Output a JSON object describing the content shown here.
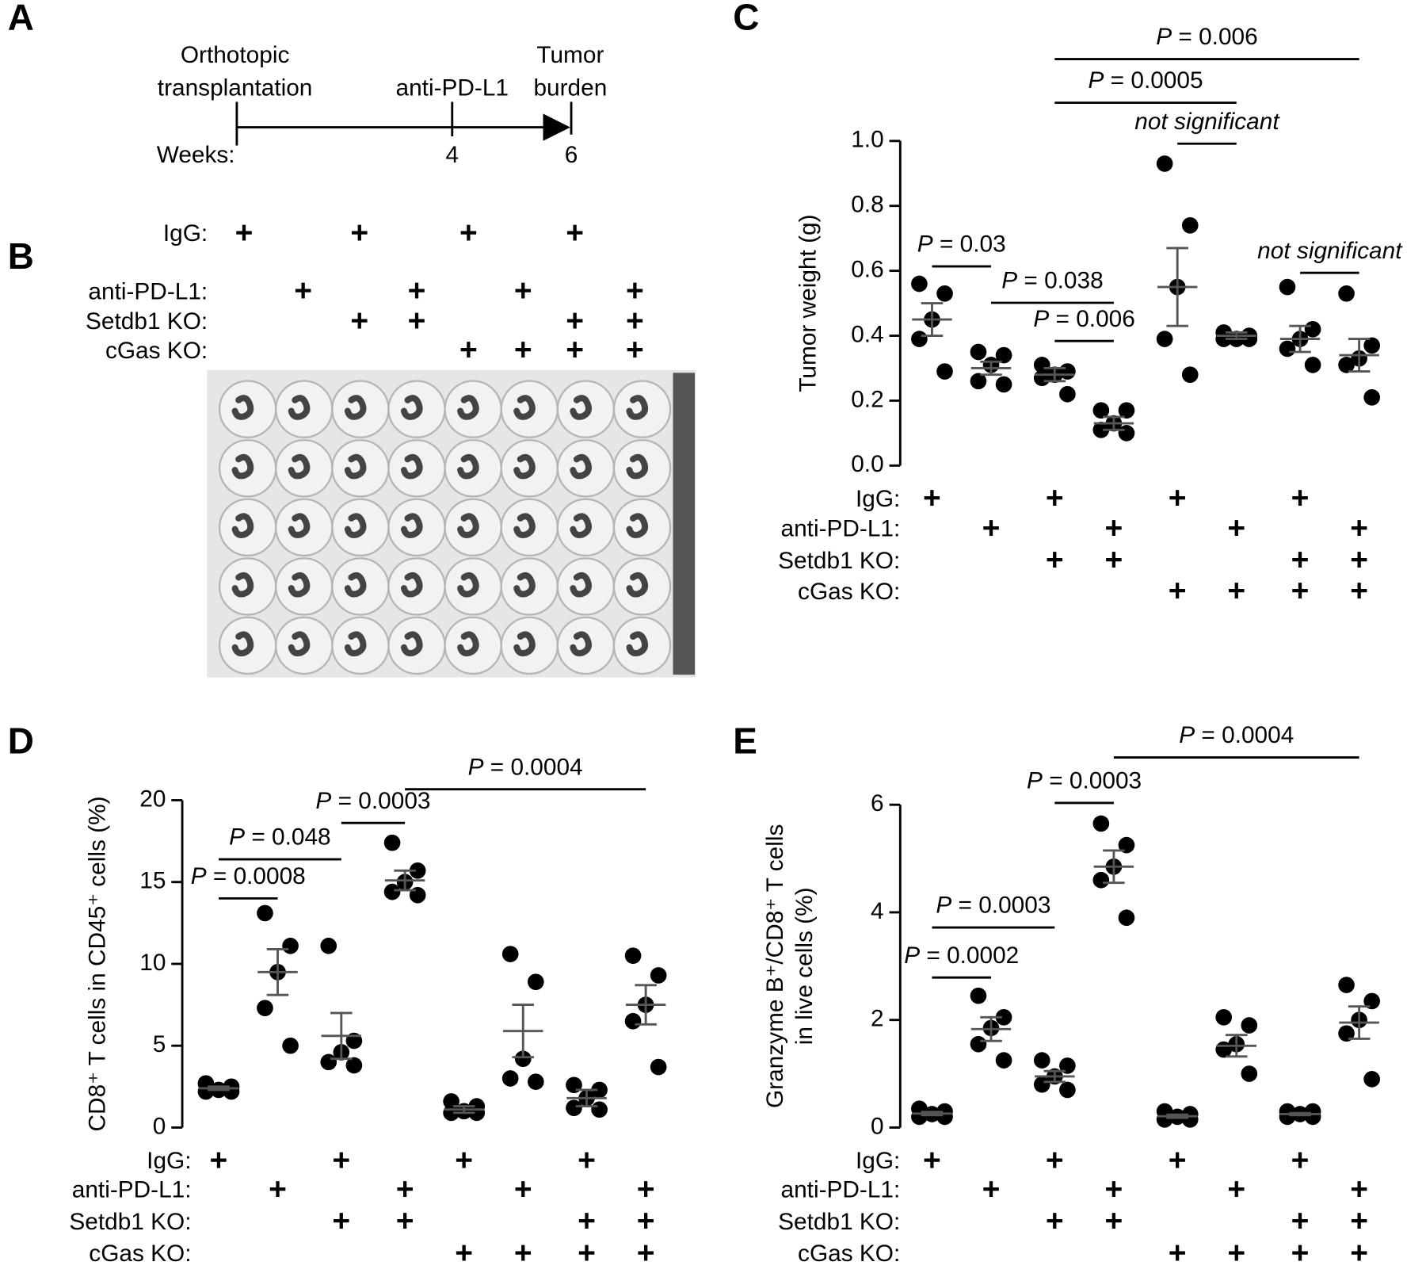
{
  "panels": {
    "labels": [
      "A",
      "B",
      "C",
      "D",
      "E"
    ],
    "timeline": {
      "start": [
        "Orthotopic",
        "transplantation"
      ],
      "mid": "anti-PD-L1",
      "end": [
        "Tumor",
        "burden"
      ],
      "axis_label": "Weeks:",
      "ticks": [
        "4",
        "6"
      ]
    },
    "photo_conditions": [
      {
        "label": "IgG:",
        "marks": [
          "+",
          null,
          "+",
          null,
          "+",
          null,
          "+",
          null
        ]
      },
      {
        "label": "anti-PD-L1:",
        "marks": [
          null,
          "+",
          null,
          "+",
          null,
          "+",
          null,
          "+"
        ]
      },
      {
        "label": "Setdb1 KO:",
        "marks": [
          null,
          null,
          "+",
          "+",
          null,
          null,
          "+",
          "+"
        ]
      },
      {
        "label": "cGas KO:",
        "marks": [
          null,
          null,
          null,
          null,
          "+",
          "+",
          "+",
          "+"
        ]
      }
    ]
  },
  "chart_data": [
    {
      "type": "dot",
      "ylabel": [
        "Tumor weight (g)"
      ],
      "ylim": [
        0,
        1.0
      ],
      "yticks": [
        {
          "value": 0,
          "label": "0.0"
        },
        0.2,
        0.4,
        0.6,
        0.8,
        {
          "value": 1.0,
          "label": "1.0"
        }
      ],
      "color": "#000000",
      "mean_color": "#555555",
      "groups": [
        {
          "values": [
            0.56,
            0.53,
            0.45,
            0.39,
            0.29
          ],
          "mean": 0.45,
          "sem": 0.05
        },
        {
          "values": [
            0.35,
            0.34,
            0.31,
            0.26,
            0.25
          ],
          "mean": 0.3,
          "sem": 0.02
        },
        {
          "values": [
            0.31,
            0.29,
            0.28,
            0.27,
            0.22
          ],
          "mean": 0.28,
          "sem": 0.02
        },
        {
          "values": [
            0.17,
            0.17,
            0.13,
            0.11,
            0.1
          ],
          "mean": 0.13,
          "sem": 0.02
        },
        {
          "values": [
            0.93,
            0.74,
            0.55,
            0.39,
            0.28
          ],
          "mean": 0.55,
          "sem": 0.12
        },
        {
          "values": [
            0.41,
            0.4,
            0.39,
            0.39,
            0.39
          ],
          "mean": 0.4,
          "sem": 0.01
        },
        {
          "values": [
            0.55,
            0.42,
            0.39,
            0.36,
            0.31
          ],
          "mean": 0.39,
          "sem": 0.04
        },
        {
          "values": [
            0.53,
            0.37,
            0.33,
            0.31,
            0.21
          ],
          "mean": 0.34,
          "sem": 0.05
        }
      ],
      "conditions": [
        {
          "label": "IgG:",
          "marks": [
            "+",
            null,
            "+",
            null,
            "+",
            null,
            "+",
            null
          ]
        },
        {
          "label": "anti-PD-L1:",
          "marks": [
            null,
            "+",
            null,
            "+",
            null,
            "+",
            null,
            "+"
          ]
        },
        {
          "label": "Setdb1 KO:",
          "marks": [
            null,
            null,
            "+",
            "+",
            null,
            null,
            "+",
            "+"
          ]
        },
        {
          "label": "cGas KO:",
          "marks": [
            null,
            null,
            null,
            null,
            "+",
            "+",
            "+",
            "+"
          ]
        }
      ],
      "annotations": [
        {
          "italic": "P",
          "text": " = 0.006"
        },
        {
          "italic": "P",
          "text": " = 0.0005"
        },
        {
          "italic": "not significant"
        },
        {
          "italic": "P",
          "text": " = 0.03"
        },
        {
          "italic": "P",
          "text": " = 0.038"
        },
        {
          "italic": "P",
          "text": " = 0.006"
        },
        {
          "italic": "not significant"
        }
      ]
    },
    {
      "type": "dot",
      "ylabel": [
        "CD8⁺ T cells in CD45⁺ cells (%)"
      ],
      "ylim": [
        0,
        20
      ],
      "yticks": [
        0,
        5,
        10,
        15,
        20
      ],
      "color": "#000000",
      "mean_color": "#555555",
      "groups": [
        {
          "values": [
            2.7,
            2.5,
            2.3,
            2.2,
            2.2
          ],
          "mean": 2.4,
          "sem": 0.1
        },
        {
          "values": [
            13.1,
            11.1,
            9.5,
            7.3,
            5.0
          ],
          "mean": 9.5,
          "sem": 1.4
        },
        {
          "values": [
            11.1,
            5.3,
            4.6,
            4.0,
            3.8
          ],
          "mean": 5.6,
          "sem": 1.4
        },
        {
          "values": [
            17.4,
            15.7,
            15.0,
            14.4,
            14.2
          ],
          "mean": 15.1,
          "sem": 0.6
        },
        {
          "values": [
            1.6,
            1.3,
            1.0,
            0.9,
            0.9
          ],
          "mean": 1.1,
          "sem": 0.2
        },
        {
          "values": [
            10.6,
            8.9,
            4.2,
            3.0,
            2.8
          ],
          "mean": 5.9,
          "sem": 1.6
        },
        {
          "values": [
            2.6,
            2.3,
            1.8,
            1.2,
            1.1
          ],
          "mean": 1.8,
          "sem": 0.5
        },
        {
          "values": [
            10.5,
            9.3,
            7.5,
            6.5,
            3.7
          ],
          "mean": 7.5,
          "sem": 1.2
        }
      ],
      "conditions": [
        {
          "label": "IgG:",
          "marks": [
            "+",
            null,
            "+",
            null,
            "+",
            null,
            "+",
            null
          ]
        },
        {
          "label": "anti-PD-L1:",
          "marks": [
            null,
            "+",
            null,
            "+",
            null,
            "+",
            null,
            "+"
          ]
        },
        {
          "label": "Setdb1 KO:",
          "marks": [
            null,
            null,
            "+",
            "+",
            null,
            null,
            "+",
            "+"
          ]
        },
        {
          "label": "cGas KO:",
          "marks": [
            null,
            null,
            null,
            null,
            "+",
            "+",
            "+",
            "+"
          ]
        }
      ],
      "annotations": [
        {
          "italic": "P",
          "text": " = 0.0008"
        },
        {
          "italic": "P",
          "text": " = 0.048"
        },
        {
          "italic": "P",
          "text": " = 0.0003"
        },
        {
          "italic": "P",
          "text": " = 0.0004"
        }
      ]
    },
    {
      "type": "dot",
      "ylabel": [
        "Granzyme B⁺/CD8⁺ T cells",
        "in live cells (%)"
      ],
      "ylim": [
        0,
        6
      ],
      "yticks": [
        0,
        2,
        4,
        6
      ],
      "color": "#000000",
      "mean_color": "#555555",
      "groups": [
        {
          "values": [
            0.35,
            0.3,
            0.25,
            0.2,
            0.2
          ],
          "mean": 0.26,
          "sem": 0.03
        },
        {
          "values": [
            2.45,
            2.05,
            1.85,
            1.55,
            1.25
          ],
          "mean": 1.83,
          "sem": 0.22
        },
        {
          "values": [
            1.25,
            1.15,
            0.95,
            0.8,
            0.7
          ],
          "mean": 0.95,
          "sem": 0.1
        },
        {
          "values": [
            5.65,
            5.25,
            4.85,
            4.6,
            3.9
          ],
          "mean": 4.85,
          "sem": 0.3
        },
        {
          "values": [
            0.3,
            0.25,
            0.2,
            0.15,
            0.15
          ],
          "mean": 0.21,
          "sem": 0.03
        },
        {
          "values": [
            2.05,
            1.9,
            1.55,
            1.45,
            1.0
          ],
          "mean": 1.52,
          "sem": 0.2
        },
        {
          "values": [
            0.3,
            0.3,
            0.25,
            0.2,
            0.2
          ],
          "mean": 0.25,
          "sem": 0.02
        },
        {
          "values": [
            2.65,
            2.35,
            2.0,
            1.75,
            0.9
          ],
          "mean": 1.95,
          "sem": 0.3
        }
      ],
      "conditions": [
        {
          "label": "IgG:",
          "marks": [
            "+",
            null,
            "+",
            null,
            "+",
            null,
            "+",
            null
          ]
        },
        {
          "label": "anti-PD-L1:",
          "marks": [
            null,
            "+",
            null,
            "+",
            null,
            "+",
            null,
            "+"
          ]
        },
        {
          "label": "Setdb1 KO:",
          "marks": [
            null,
            null,
            "+",
            "+",
            null,
            null,
            "+",
            "+"
          ]
        },
        {
          "label": "cGas KO:",
          "marks": [
            null,
            null,
            null,
            null,
            "+",
            "+",
            "+",
            "+"
          ]
        }
      ],
      "annotations": [
        {
          "italic": "P",
          "text": " = 0.0002"
        },
        {
          "italic": "P",
          "text": " = 0.0003"
        },
        {
          "italic": "P",
          "text": " = 0.0003"
        },
        {
          "italic": "P",
          "text": " = 0.0004"
        }
      ]
    }
  ]
}
